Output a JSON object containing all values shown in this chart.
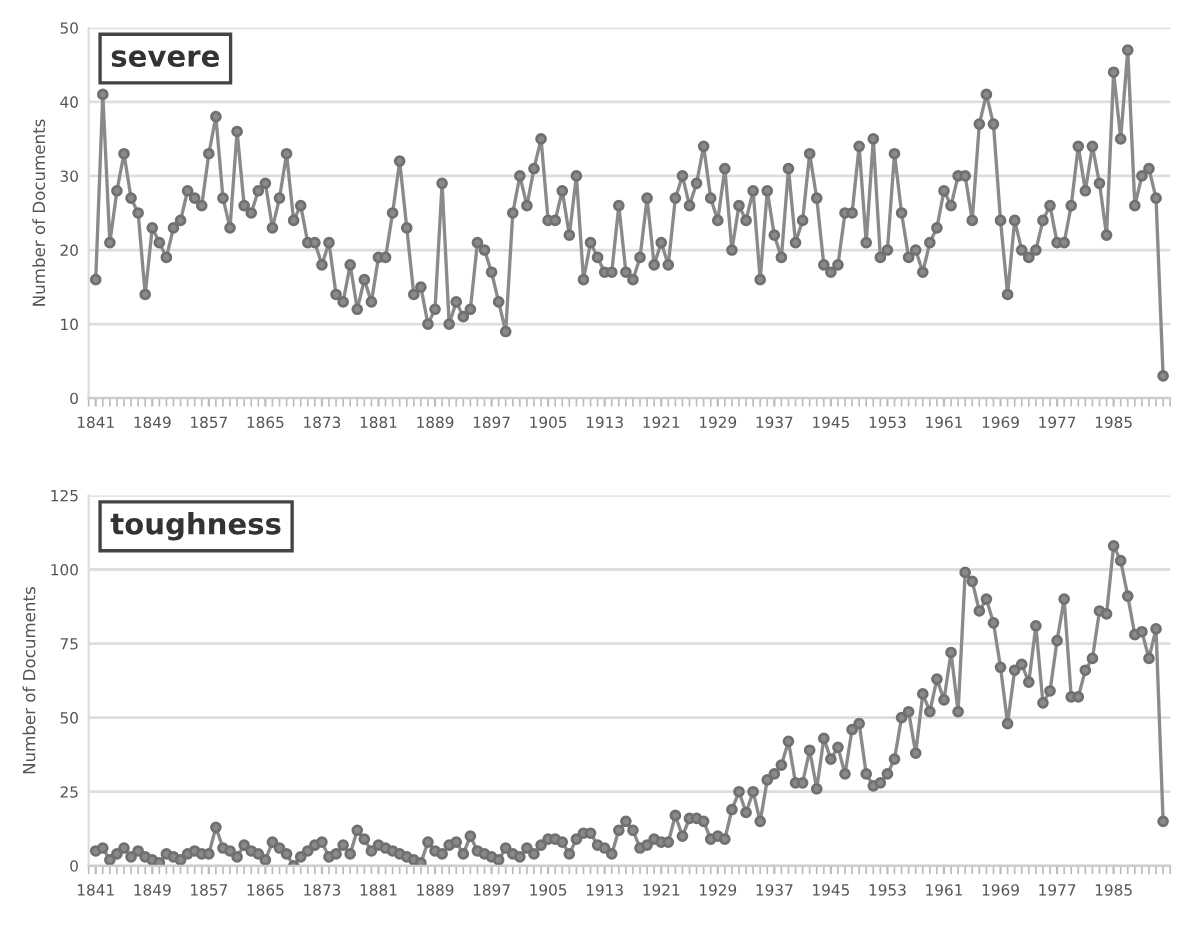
{
  "chart_data": [
    {
      "type": "line",
      "title": "severe",
      "ylabel": "Number of Documents",
      "x": [
        1841,
        1842,
        1843,
        1844,
        1845,
        1846,
        1847,
        1848,
        1849,
        1850,
        1851,
        1852,
        1853,
        1854,
        1855,
        1856,
        1857,
        1858,
        1859,
        1860,
        1861,
        1862,
        1863,
        1864,
        1865,
        1866,
        1867,
        1868,
        1869,
        1870,
        1871,
        1872,
        1873,
        1874,
        1875,
        1876,
        1877,
        1878,
        1879,
        1880,
        1881,
        1882,
        1883,
        1884,
        1885,
        1886,
        1887,
        1888,
        1889,
        1890,
        1891,
        1892,
        1893,
        1894,
        1895,
        1896,
        1897,
        1898,
        1899,
        1900,
        1901,
        1902,
        1903,
        1904,
        1905,
        1906,
        1907,
        1908,
        1909,
        1910,
        1911,
        1912,
        1913,
        1914,
        1915,
        1916,
        1917,
        1918,
        1919,
        1920,
        1921,
        1922,
        1923,
        1924,
        1925,
        1926,
        1927,
        1928,
        1929,
        1930,
        1931,
        1932,
        1933,
        1934,
        1935,
        1936,
        1937,
        1938,
        1939,
        1940,
        1941,
        1942,
        1943,
        1944,
        1945,
        1946,
        1947,
        1948,
        1949,
        1950,
        1951,
        1952,
        1953,
        1954,
        1955,
        1956,
        1957,
        1958,
        1959,
        1960,
        1961,
        1962,
        1963,
        1964,
        1965,
        1966,
        1967,
        1968,
        1969,
        1970,
        1971,
        1972,
        1973,
        1974,
        1975,
        1976,
        1977,
        1978,
        1979,
        1980,
        1981,
        1982,
        1983,
        1984,
        1985,
        1986,
        1987,
        1988,
        1989,
        1990,
        1991,
        1992
      ],
      "series": [
        {
          "color": "#8a8a8a",
          "values": [
            16,
            41,
            21,
            28,
            33,
            27,
            25,
            14,
            23,
            21,
            19,
            23,
            24,
            28,
            27,
            26,
            33,
            38,
            27,
            23,
            36,
            26,
            25,
            28,
            29,
            23,
            27,
            33,
            24,
            26,
            21,
            21,
            18,
            21,
            14,
            13,
            18,
            12,
            16,
            13,
            19,
            19,
            25,
            32,
            23,
            14,
            15,
            10,
            12,
            29,
            10,
            13,
            11,
            12,
            21,
            20,
            17,
            13,
            9,
            25,
            30,
            26,
            31,
            35,
            24,
            24,
            28,
            22,
            30,
            16,
            21,
            19,
            17,
            17,
            26,
            17,
            16,
            19,
            27,
            18,
            21,
            18,
            27,
            30,
            26,
            29,
            34,
            27,
            24,
            31,
            20,
            26,
            24,
            28,
            16,
            28,
            22,
            19,
            31,
            21,
            24,
            33,
            27,
            18,
            17,
            18,
            25,
            25,
            34,
            21,
            35,
            19,
            20,
            33,
            25,
            19,
            20,
            17,
            21,
            23,
            28,
            26,
            30,
            30,
            24,
            37,
            41,
            37,
            24,
            14,
            24,
            20,
            19,
            20,
            24,
            26,
            21,
            21,
            26,
            34,
            28,
            34,
            29,
            22,
            44,
            35,
            47,
            26,
            30,
            31,
            27,
            3
          ]
        }
      ],
      "xlim": [
        1840,
        1993
      ],
      "xticks": [
        1841,
        1849,
        1857,
        1865,
        1873,
        1881,
        1889,
        1897,
        1905,
        1913,
        1921,
        1929,
        1937,
        1945,
        1953,
        1961,
        1969,
        1977,
        1985
      ],
      "ylim": [
        0,
        50
      ],
      "yticks": [
        0,
        10,
        20,
        30,
        40,
        50
      ],
      "grid": "y",
      "marker": "circle",
      "line_style": "solid"
    },
    {
      "type": "line",
      "title": "toughness",
      "ylabel": "Number of Documents",
      "x": [
        1841,
        1842,
        1843,
        1844,
        1845,
        1846,
        1847,
        1848,
        1849,
        1850,
        1851,
        1852,
        1853,
        1854,
        1855,
        1856,
        1857,
        1858,
        1859,
        1860,
        1861,
        1862,
        1863,
        1864,
        1865,
        1866,
        1867,
        1868,
        1869,
        1870,
        1871,
        1872,
        1873,
        1874,
        1875,
        1876,
        1877,
        1878,
        1879,
        1880,
        1881,
        1882,
        1883,
        1884,
        1885,
        1886,
        1887,
        1888,
        1889,
        1890,
        1891,
        1892,
        1893,
        1894,
        1895,
        1896,
        1897,
        1898,
        1899,
        1900,
        1901,
        1902,
        1903,
        1904,
        1905,
        1906,
        1907,
        1908,
        1909,
        1910,
        1911,
        1912,
        1913,
        1914,
        1915,
        1916,
        1917,
        1918,
        1919,
        1920,
        1921,
        1922,
        1923,
        1924,
        1925,
        1926,
        1927,
        1928,
        1929,
        1930,
        1931,
        1932,
        1933,
        1934,
        1935,
        1936,
        1937,
        1938,
        1939,
        1940,
        1941,
        1942,
        1943,
        1944,
        1945,
        1946,
        1947,
        1948,
        1949,
        1950,
        1951,
        1952,
        1953,
        1954,
        1955,
        1956,
        1957,
        1958,
        1959,
        1960,
        1961,
        1962,
        1963,
        1964,
        1965,
        1966,
        1967,
        1968,
        1969,
        1970,
        1971,
        1972,
        1973,
        1974,
        1975,
        1976,
        1977,
        1978,
        1979,
        1980,
        1981,
        1982,
        1983,
        1984,
        1985,
        1986,
        1987,
        1988,
        1989,
        1990,
        1991,
        1992
      ],
      "series": [
        {
          "color": "#8a8a8a",
          "values": [
            5,
            6,
            2,
            4,
            6,
            3,
            5,
            3,
            2,
            1,
            4,
            3,
            2,
            4,
            5,
            4,
            4,
            13,
            6,
            5,
            3,
            7,
            5,
            4,
            2,
            8,
            6,
            4,
            0,
            3,
            5,
            7,
            8,
            3,
            4,
            7,
            4,
            12,
            9,
            5,
            7,
            6,
            5,
            4,
            3,
            2,
            1,
            8,
            5,
            4,
            7,
            8,
            4,
            10,
            5,
            4,
            3,
            2,
            6,
            4,
            3,
            6,
            4,
            7,
            9,
            9,
            8,
            4,
            9,
            11,
            11,
            7,
            6,
            4,
            12,
            15,
            12,
            6,
            7,
            9,
            8,
            8,
            17,
            10,
            16,
            16,
            15,
            9,
            10,
            9,
            19,
            25,
            18,
            25,
            15,
            29,
            31,
            34,
            42,
            28,
            28,
            39,
            26,
            43,
            36,
            40,
            31,
            46,
            48,
            31,
            27,
            28,
            31,
            36,
            50,
            52,
            38,
            58,
            52,
            63,
            56,
            72,
            52,
            99,
            96,
            86,
            90,
            82,
            67,
            48,
            66,
            68,
            62,
            81,
            55,
            59,
            76,
            90,
            57,
            57,
            66,
            70,
            86,
            85,
            108,
            103,
            91,
            78,
            79,
            70,
            80,
            15
          ]
        }
      ],
      "xlim": [
        1840,
        1993
      ],
      "xticks": [
        1841,
        1849,
        1857,
        1865,
        1873,
        1881,
        1889,
        1897,
        1905,
        1913,
        1921,
        1929,
        1937,
        1945,
        1953,
        1961,
        1969,
        1977,
        1985
      ],
      "ylim": [
        0,
        125
      ],
      "yticks": [
        0,
        25,
        50,
        75,
        100,
        125
      ],
      "grid": "y",
      "marker": "circle",
      "line_style": "solid"
    }
  ]
}
